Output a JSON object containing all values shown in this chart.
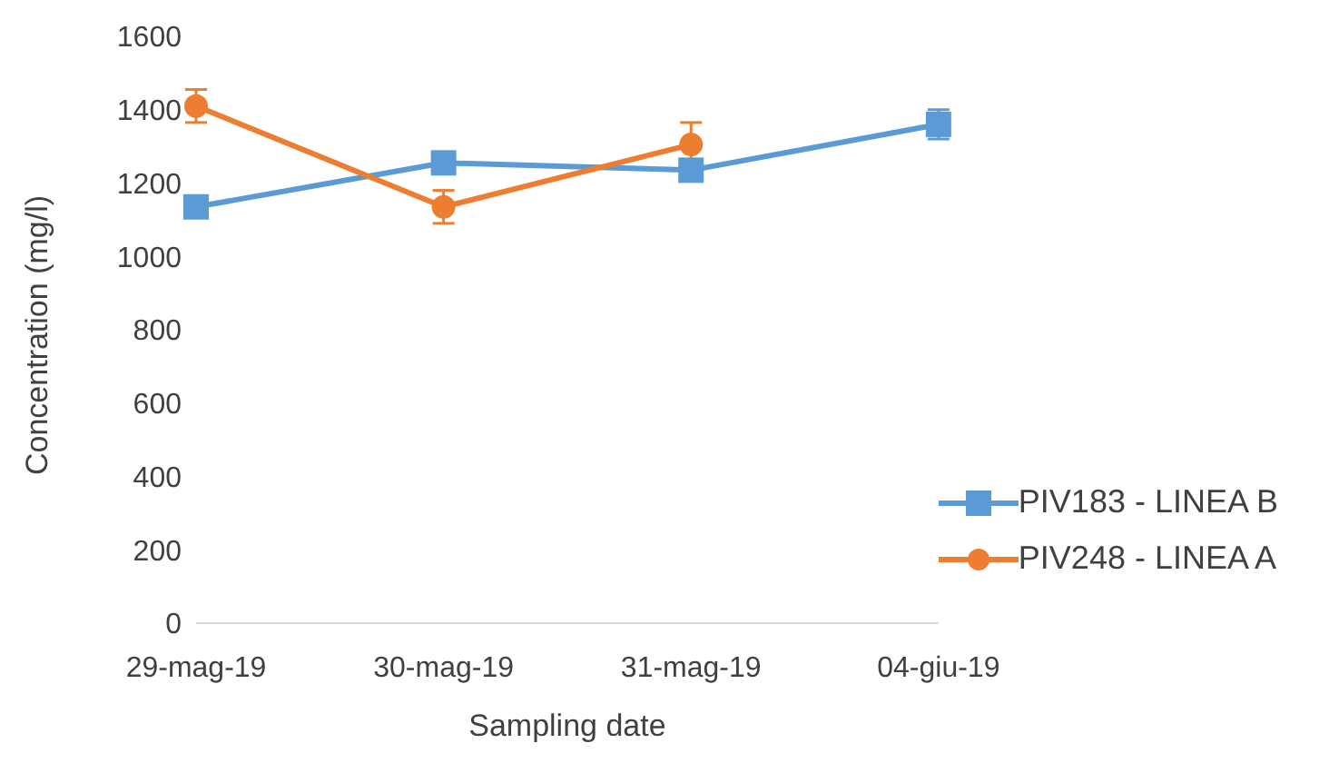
{
  "chart_data": {
    "type": "line",
    "xlabel": "Sampling date",
    "ylabel": "Concentration (mg/l)",
    "categories": [
      "29-mag-19",
      "30-mag-19",
      "31-mag-19",
      "04-giu-19"
    ],
    "series": [
      {
        "name": "PIV183 - LINEA B",
        "color": "#5b9bd5",
        "marker": "square",
        "values": [
          1135,
          1255,
          1235,
          1360
        ],
        "errors": [
          20,
          20,
          20,
          40
        ]
      },
      {
        "name": "PIV248 - LINEA A",
        "color": "#ed7d31",
        "marker": "circle",
        "values": [
          1410,
          1135,
          1305,
          null
        ],
        "errors": [
          45,
          45,
          60,
          null
        ]
      }
    ],
    "ylim": [
      0,
      1600
    ],
    "yticks": [
      0,
      200,
      400,
      600,
      800,
      1000,
      1200,
      1400,
      1600
    ],
    "grid": false,
    "legend": "bottom right",
    "line_style": "solid"
  }
}
